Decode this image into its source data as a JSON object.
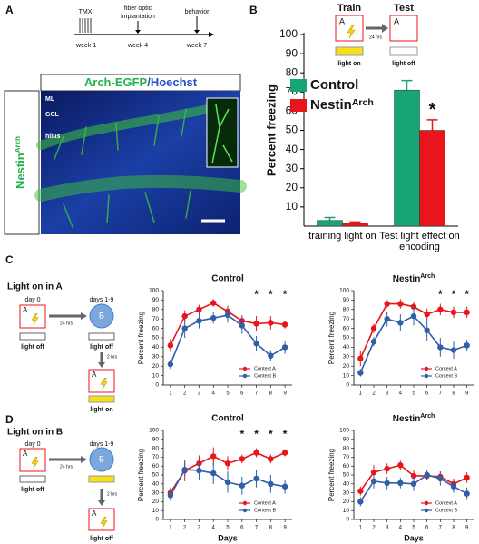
{
  "panels": {
    "a": "A",
    "b": "B",
    "c": "C",
    "d": "D"
  },
  "panel_a": {
    "tmx": "TMX",
    "implant_1": "fiber optic",
    "implant_2": "implantation",
    "behavior": "behavior",
    "weeks": [
      "week 1",
      "week 4",
      "week 7"
    ],
    "image_title_green": "Arch-EGFP",
    "image_title_blue": "/Hoechst",
    "layers": [
      "ML",
      "GCL",
      "hilus"
    ],
    "side_label": "Nestin",
    "side_label_superscript": "Arch"
  },
  "panel_b": {
    "train": "Train",
    "test": "Test",
    "context": "A",
    "interval": "24 hrs",
    "light_on": "light on",
    "light_off": "light off"
  },
  "panel_c": {
    "title": "Light on in A",
    "day0": "day 0",
    "days": "days 1-9",
    "context_a": "A",
    "context_b": "B",
    "interval": "24 hrs",
    "interval2": "2 hrs",
    "light_off": "light off",
    "light_on": "light on"
  },
  "panel_d": {
    "title": "Light on in B",
    "day0": "day 0",
    "days": "days 1-9",
    "context_a": "A",
    "context_b": "B",
    "interval": "24 hrs",
    "interval2": "2 hrs",
    "light_off": "light off"
  },
  "chart_data": [
    {
      "type": "bar",
      "ylabel": "Percent freezing",
      "categories": [
        "training light on",
        "Test light effect on encoding"
      ],
      "series": [
        {
          "name": "Control",
          "color": "#17a673",
          "values": [
            3,
            71
          ],
          "errors": [
            1.5,
            5
          ]
        },
        {
          "name": "Nestin",
          "name_superscript": "Arch",
          "color": "#e8151b",
          "values": [
            1.5,
            50
          ],
          "errors": [
            0.7,
            5.5
          ]
        }
      ],
      "ylim": [
        0,
        100
      ],
      "yticks": [
        10,
        20,
        30,
        40,
        50,
        60,
        70,
        80,
        90,
        100
      ],
      "annotation": "*"
    },
    {
      "type": "line",
      "title": "Control",
      "ylabel": "Percent freezing",
      "x": [
        1,
        2,
        3,
        4,
        5,
        6,
        7,
        8,
        9
      ],
      "xlim": [
        0.5,
        9.5
      ],
      "xticks": [
        1,
        2,
        3,
        4,
        5,
        6,
        7,
        8,
        9
      ],
      "ylim": [
        0,
        100
      ],
      "yticks": [
        0,
        10,
        20,
        30,
        40,
        50,
        60,
        70,
        80,
        90,
        100
      ],
      "series": [
        {
          "name": "Context A",
          "color": "#e8151b",
          "values": [
            42,
            73,
            80,
            87,
            78,
            68,
            65,
            66,
            64
          ],
          "errors": [
            7,
            6,
            5,
            4,
            6,
            6,
            8,
            7,
            4
          ]
        },
        {
          "name": "Context B",
          "color": "#2e5fa8",
          "values": [
            22,
            60,
            68,
            71,
            74,
            63,
            44,
            31,
            40
          ],
          "errors": [
            5,
            10,
            8,
            6,
            8,
            9,
            8,
            6,
            7
          ]
        }
      ],
      "significant_days": [
        7,
        8,
        9
      ],
      "significance_label": "*",
      "legend": "lower right"
    },
    {
      "type": "line",
      "title": "Nestin",
      "title_superscript": "Arch",
      "ylabel": "Percent freezing",
      "x": [
        1,
        2,
        3,
        4,
        5,
        6,
        7,
        8,
        9
      ],
      "xlim": [
        0.5,
        9.5
      ],
      "xticks": [
        1,
        2,
        3,
        4,
        5,
        6,
        7,
        8,
        9
      ],
      "ylim": [
        0,
        100
      ],
      "yticks": [
        0,
        10,
        20,
        30,
        40,
        50,
        60,
        70,
        80,
        90,
        100
      ],
      "series": [
        {
          "name": "Context A",
          "color": "#e8151b",
          "values": [
            28,
            60,
            86,
            86,
            83,
            75,
            80,
            77,
            77
          ],
          "errors": [
            8,
            5,
            4,
            5,
            5,
            6,
            6,
            6,
            6
          ]
        },
        {
          "name": "Context B",
          "color": "#2e5fa8",
          "values": [
            13,
            46,
            70,
            66,
            73,
            58,
            40,
            37,
            42
          ],
          "errors": [
            4,
            5,
            8,
            9,
            10,
            11,
            10,
            9,
            6
          ]
        }
      ],
      "significant_days": [
        7,
        8,
        9
      ],
      "significance_label": "*",
      "legend": "lower right"
    },
    {
      "type": "line",
      "title": "Control",
      "ylabel": "Percent freezing",
      "xlabel": "Days",
      "x": [
        1,
        2,
        3,
        4,
        5,
        6,
        7,
        8,
        9
      ],
      "xlim": [
        0.5,
        9.5
      ],
      "xticks": [
        1,
        2,
        3,
        4,
        5,
        6,
        7,
        8,
        9
      ],
      "ylim": [
        0,
        100
      ],
      "yticks": [
        0,
        10,
        20,
        30,
        40,
        50,
        60,
        70,
        80,
        90,
        100
      ],
      "series": [
        {
          "name": "Context A",
          "color": "#e8151b",
          "values": [
            30,
            55,
            63,
            71,
            63,
            68,
            75,
            68,
            75
          ],
          "errors": [
            6,
            12,
            9,
            10,
            8,
            5,
            5,
            5,
            4
          ]
        },
        {
          "name": "Context B",
          "color": "#2e5fa8",
          "values": [
            27,
            56,
            55,
            52,
            42,
            38,
            46,
            40,
            37
          ],
          "errors": [
            6,
            8,
            10,
            12,
            12,
            10,
            10,
            10,
            8
          ]
        }
      ],
      "significant_days": [
        6,
        7,
        8,
        9
      ],
      "significance_label": "*",
      "legend": "lower right"
    },
    {
      "type": "line",
      "title": "Nestin",
      "title_superscript": "Arch",
      "ylabel": "Percent freezing",
      "xlabel": "Days",
      "x": [
        1,
        2,
        3,
        4,
        5,
        6,
        7,
        8,
        9
      ],
      "xlim": [
        0.5,
        9.5
      ],
      "xticks": [
        1,
        2,
        3,
        4,
        5,
        6,
        7,
        8,
        9
      ],
      "ylim": [
        0,
        100
      ],
      "yticks": [
        0,
        10,
        20,
        30,
        40,
        50,
        60,
        70,
        80,
        90,
        100
      ],
      "series": [
        {
          "name": "Context A",
          "color": "#e8151b",
          "values": [
            32,
            53,
            57,
            61,
            49,
            49,
            48,
            40,
            47
          ],
          "errors": [
            5,
            8,
            6,
            5,
            6,
            5,
            6,
            6,
            6
          ]
        },
        {
          "name": "Context B",
          "color": "#2e5fa8",
          "values": [
            20,
            43,
            41,
            41,
            40,
            50,
            46,
            37,
            29
          ],
          "errors": [
            5,
            8,
            7,
            6,
            8,
            6,
            8,
            7,
            7
          ]
        }
      ],
      "legend": "lower right"
    }
  ]
}
